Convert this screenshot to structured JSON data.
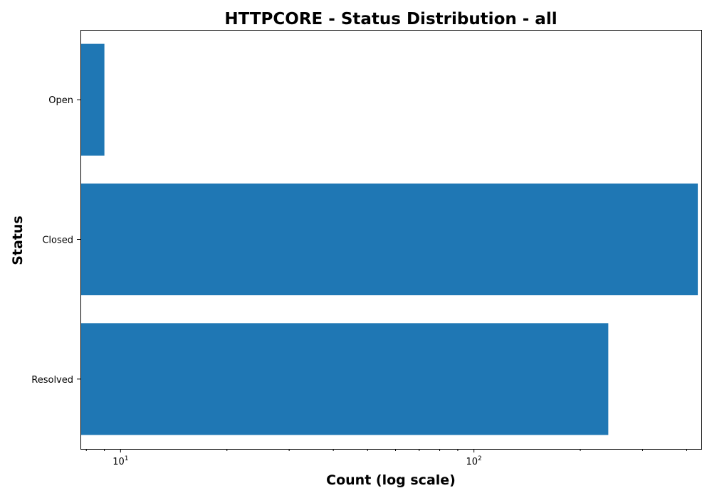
{
  "chart_data": {
    "type": "bar",
    "orientation": "horizontal",
    "title": "HTTPCORE - Status Distribution - all",
    "xlabel": "Count (log scale)",
    "ylabel": "Status",
    "x_scale": "log",
    "xlim": [
      7.7,
      440
    ],
    "categories": [
      "Open",
      "Closed",
      "Resolved"
    ],
    "values": [
      9,
      430,
      240
    ],
    "major_ticks": [
      {
        "value": 10,
        "base": "10",
        "exp": "1"
      },
      {
        "value": 100,
        "base": "10",
        "exp": "2"
      }
    ],
    "minor_ticks": [
      8,
      9,
      20,
      30,
      40,
      50,
      60,
      70,
      80,
      90,
      200,
      300,
      400
    ],
    "grid": false,
    "legend": false,
    "bar_color": "#1f77b4"
  }
}
